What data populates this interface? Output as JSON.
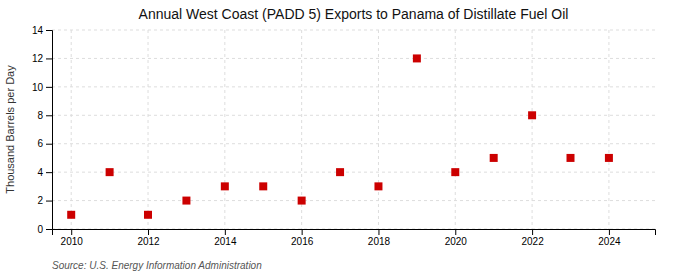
{
  "chart_data": {
    "type": "scatter",
    "title": "Annual West Coast (PADD 5) Exports to Panama of Distillate Fuel Oil",
    "y_label": "Thousand Barrels per Day",
    "source": "Source: U.S. Energy Information Administration",
    "x": [
      2010,
      2011,
      2012,
      2013,
      2014,
      2015,
      2016,
      2017,
      2018,
      2019,
      2020,
      2021,
      2022,
      2023,
      2024
    ],
    "values": [
      1,
      4,
      1,
      2,
      3,
      3,
      2,
      4,
      3,
      12,
      4,
      5,
      8,
      5,
      5
    ],
    "color": "#cc0000",
    "marker": "square",
    "xlim": [
      2009.5,
      2025.2
    ],
    "xticks": [
      2010,
      2012,
      2014,
      2016,
      2018,
      2020,
      2022,
      2024
    ],
    "ylim": [
      0,
      14
    ],
    "yticks": [
      0,
      2,
      4,
      6,
      8,
      10,
      12,
      14
    ],
    "grid": true
  }
}
